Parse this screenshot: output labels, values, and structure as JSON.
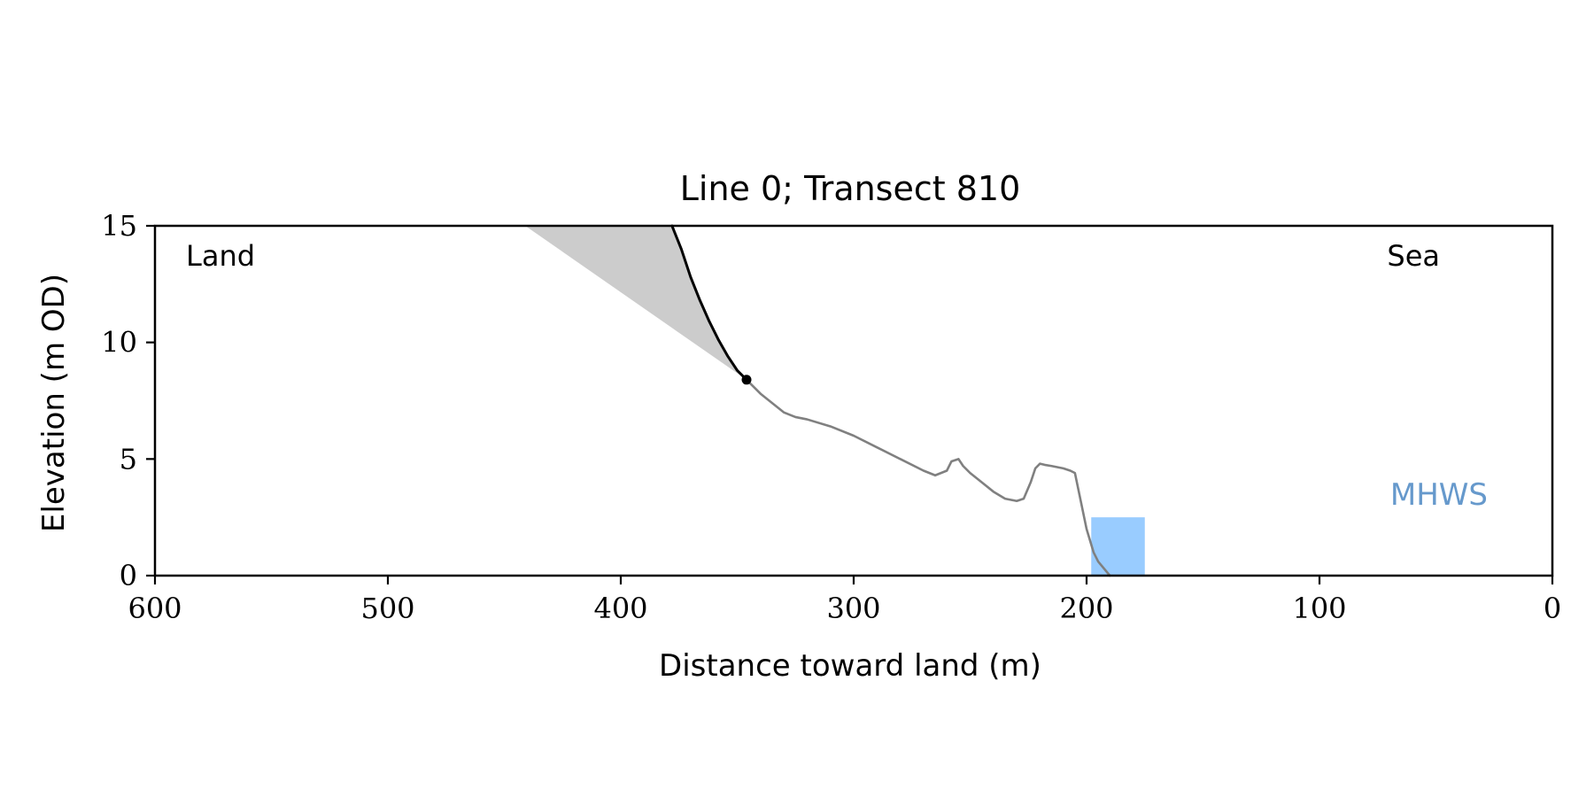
{
  "chart_data": {
    "type": "line",
    "title": "Line 0; Transect 810",
    "xlabel": "Distance toward land (m)",
    "ylabel": "Elevation (m OD)",
    "xlim": [
      600,
      0
    ],
    "ylim": [
      0,
      15
    ],
    "x_reversed": true,
    "xticks": [
      600,
      500,
      400,
      300,
      200,
      100,
      0
    ],
    "yticks": [
      0,
      5,
      10,
      15
    ],
    "grid": false,
    "annotations": {
      "land": "Land",
      "sea": "Sea",
      "mhws": "MHWS"
    },
    "colors": {
      "profile": "#808080",
      "cliff": "#000000",
      "shade": "#cccccc",
      "mhws_box": "#99ccff",
      "mhws_text": "#6699cc"
    },
    "series": [
      {
        "role": "profile",
        "x": [
          346,
          340,
          330,
          325,
          320,
          310,
          300,
          290,
          280,
          270,
          265,
          260,
          258,
          255,
          253,
          250,
          245,
          240,
          235,
          230,
          227,
          224,
          222,
          220,
          218,
          215,
          210,
          207,
          205,
          200,
          197,
          195,
          190
        ],
        "y": [
          8.4,
          7.8,
          7.0,
          6.8,
          6.7,
          6.4,
          6.0,
          5.5,
          5.0,
          4.5,
          4.3,
          4.5,
          4.9,
          5.0,
          4.7,
          4.4,
          4.0,
          3.6,
          3.3,
          3.2,
          3.3,
          4.0,
          4.6,
          4.8,
          4.75,
          4.7,
          4.6,
          4.5,
          4.4,
          2.0,
          1.0,
          0.6,
          0.0
        ]
      },
      {
        "role": "cliff",
        "x": [
          378,
          374,
          370,
          366,
          362,
          358,
          354,
          350,
          346
        ],
        "y": [
          15.0,
          14.0,
          12.8,
          11.8,
          10.9,
          10.1,
          9.4,
          8.8,
          8.4
        ]
      }
    ],
    "cliff_toe": {
      "x": 346,
      "y": 8.4
    },
    "shaded_wedge": {
      "x": [
        441,
        378,
        374,
        370,
        366,
        362,
        358,
        354,
        350,
        346
      ],
      "y": [
        15.0,
        15.0,
        14.0,
        12.8,
        11.8,
        10.9,
        10.1,
        9.4,
        8.8,
        8.4
      ]
    },
    "mhws_box": {
      "x0": 198,
      "x1": 175,
      "y0": 0,
      "y1": 2.5
    }
  }
}
